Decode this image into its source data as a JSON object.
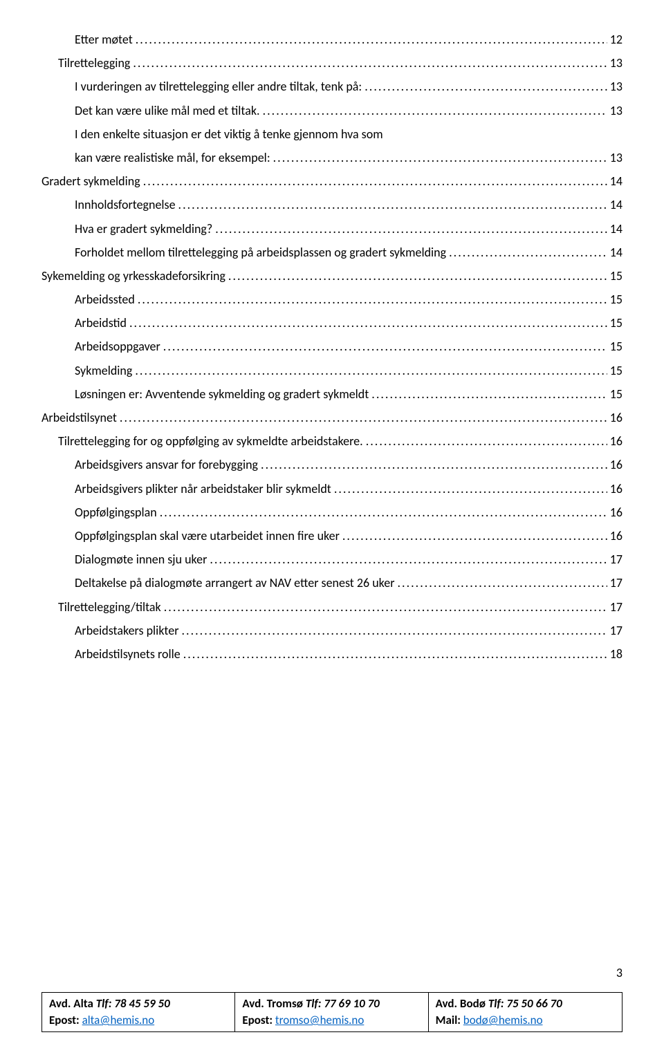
{
  "colors": {
    "text": "#000000",
    "background": "#ffffff",
    "link": "#0563c1",
    "border": "#000000"
  },
  "typography": {
    "body_font": "Calibri",
    "body_size_pt": 11,
    "line_height": 1.9
  },
  "page_number": "3",
  "toc": [
    {
      "level": 2,
      "label": "Etter møtet",
      "page": "12"
    },
    {
      "level": 1,
      "label": "Tilrettelegging",
      "page": "13"
    },
    {
      "level": 2,
      "label": "I vurderingen av tilrettelegging eller andre tiltak, tenk på:",
      "page": "13"
    },
    {
      "level": 2,
      "label": "Det kan være ulike mål med et tiltak.",
      "page": "13"
    },
    {
      "level": 2,
      "label": "I den enkelte situasjon er det viktig å tenke gjennom hva som kan være realistiske mål, for eksempel:",
      "page": "13",
      "wrap": true
    },
    {
      "level": 0,
      "label": "Gradert sykmelding",
      "page": "14"
    },
    {
      "level": 2,
      "label": "Innholdsfortegnelse",
      "page": "14"
    },
    {
      "level": 2,
      "label": "Hva er gradert sykmelding?",
      "page": "14"
    },
    {
      "level": 2,
      "label": "Forholdet mellom tilrettelegging på arbeidsplassen og gradert sykmelding",
      "page": "14"
    },
    {
      "level": 0,
      "label": "Sykemelding og yrkesskadeforsikring",
      "page": "15"
    },
    {
      "level": 2,
      "label": "Arbeidssted",
      "page": "15"
    },
    {
      "level": 2,
      "label": "Arbeidstid",
      "page": "15"
    },
    {
      "level": 2,
      "label": "Arbeidsoppgaver",
      "page": "15"
    },
    {
      "level": 2,
      "label": "Sykmelding",
      "page": "15"
    },
    {
      "level": 2,
      "label": "Løsningen er: Avventende sykmelding og gradert sykmeldt",
      "page": "15"
    },
    {
      "level": 0,
      "label": "Arbeidstilsynet",
      "page": "16"
    },
    {
      "level": 1,
      "label": "Tilrettelegging for og oppfølging av sykmeldte arbeidstakere.",
      "page": "16"
    },
    {
      "level": 2,
      "label": "Arbeidsgivers ansvar for forebygging",
      "page": "16"
    },
    {
      "level": 2,
      "label": "Arbeidsgivers plikter når arbeidstaker blir sykmeldt",
      "page": "16"
    },
    {
      "level": 2,
      "label": "Oppfølgingsplan",
      "page": "16"
    },
    {
      "level": 2,
      "label": "Oppfølgingsplan skal være utarbeidet innen fire uker",
      "page": "16"
    },
    {
      "level": 2,
      "label": "Dialogmøte innen sju uker",
      "page": "17"
    },
    {
      "level": 2,
      "label": "Deltakelse på dialogmøte arrangert av NAV etter senest 26 uker",
      "page": "17"
    },
    {
      "level": 1,
      "label": "Tilrettelegging/tiltak",
      "page": "17"
    },
    {
      "level": 2,
      "label": "Arbeidstakers plikter",
      "page": "17"
    },
    {
      "level": 2,
      "label": "Arbeidstilsynets rolle",
      "page": "18"
    }
  ],
  "footer": {
    "cells": [
      {
        "avd": "Avd. Alta",
        "tlf": "78 45 59 50",
        "epost_label": "Epost:",
        "email": "alta@hemis.no"
      },
      {
        "avd": "Avd. Tromsø",
        "tlf": "77 69 10 70",
        "epost_label": "Epost:",
        "email": "tromso@hemis.no"
      },
      {
        "avd": "Avd. Bodø",
        "tlf": "75 50 66 70",
        "epost_label": "Mail:",
        "email": "bodø@hemis.no"
      }
    ],
    "tlf_label": "Tlf:"
  }
}
